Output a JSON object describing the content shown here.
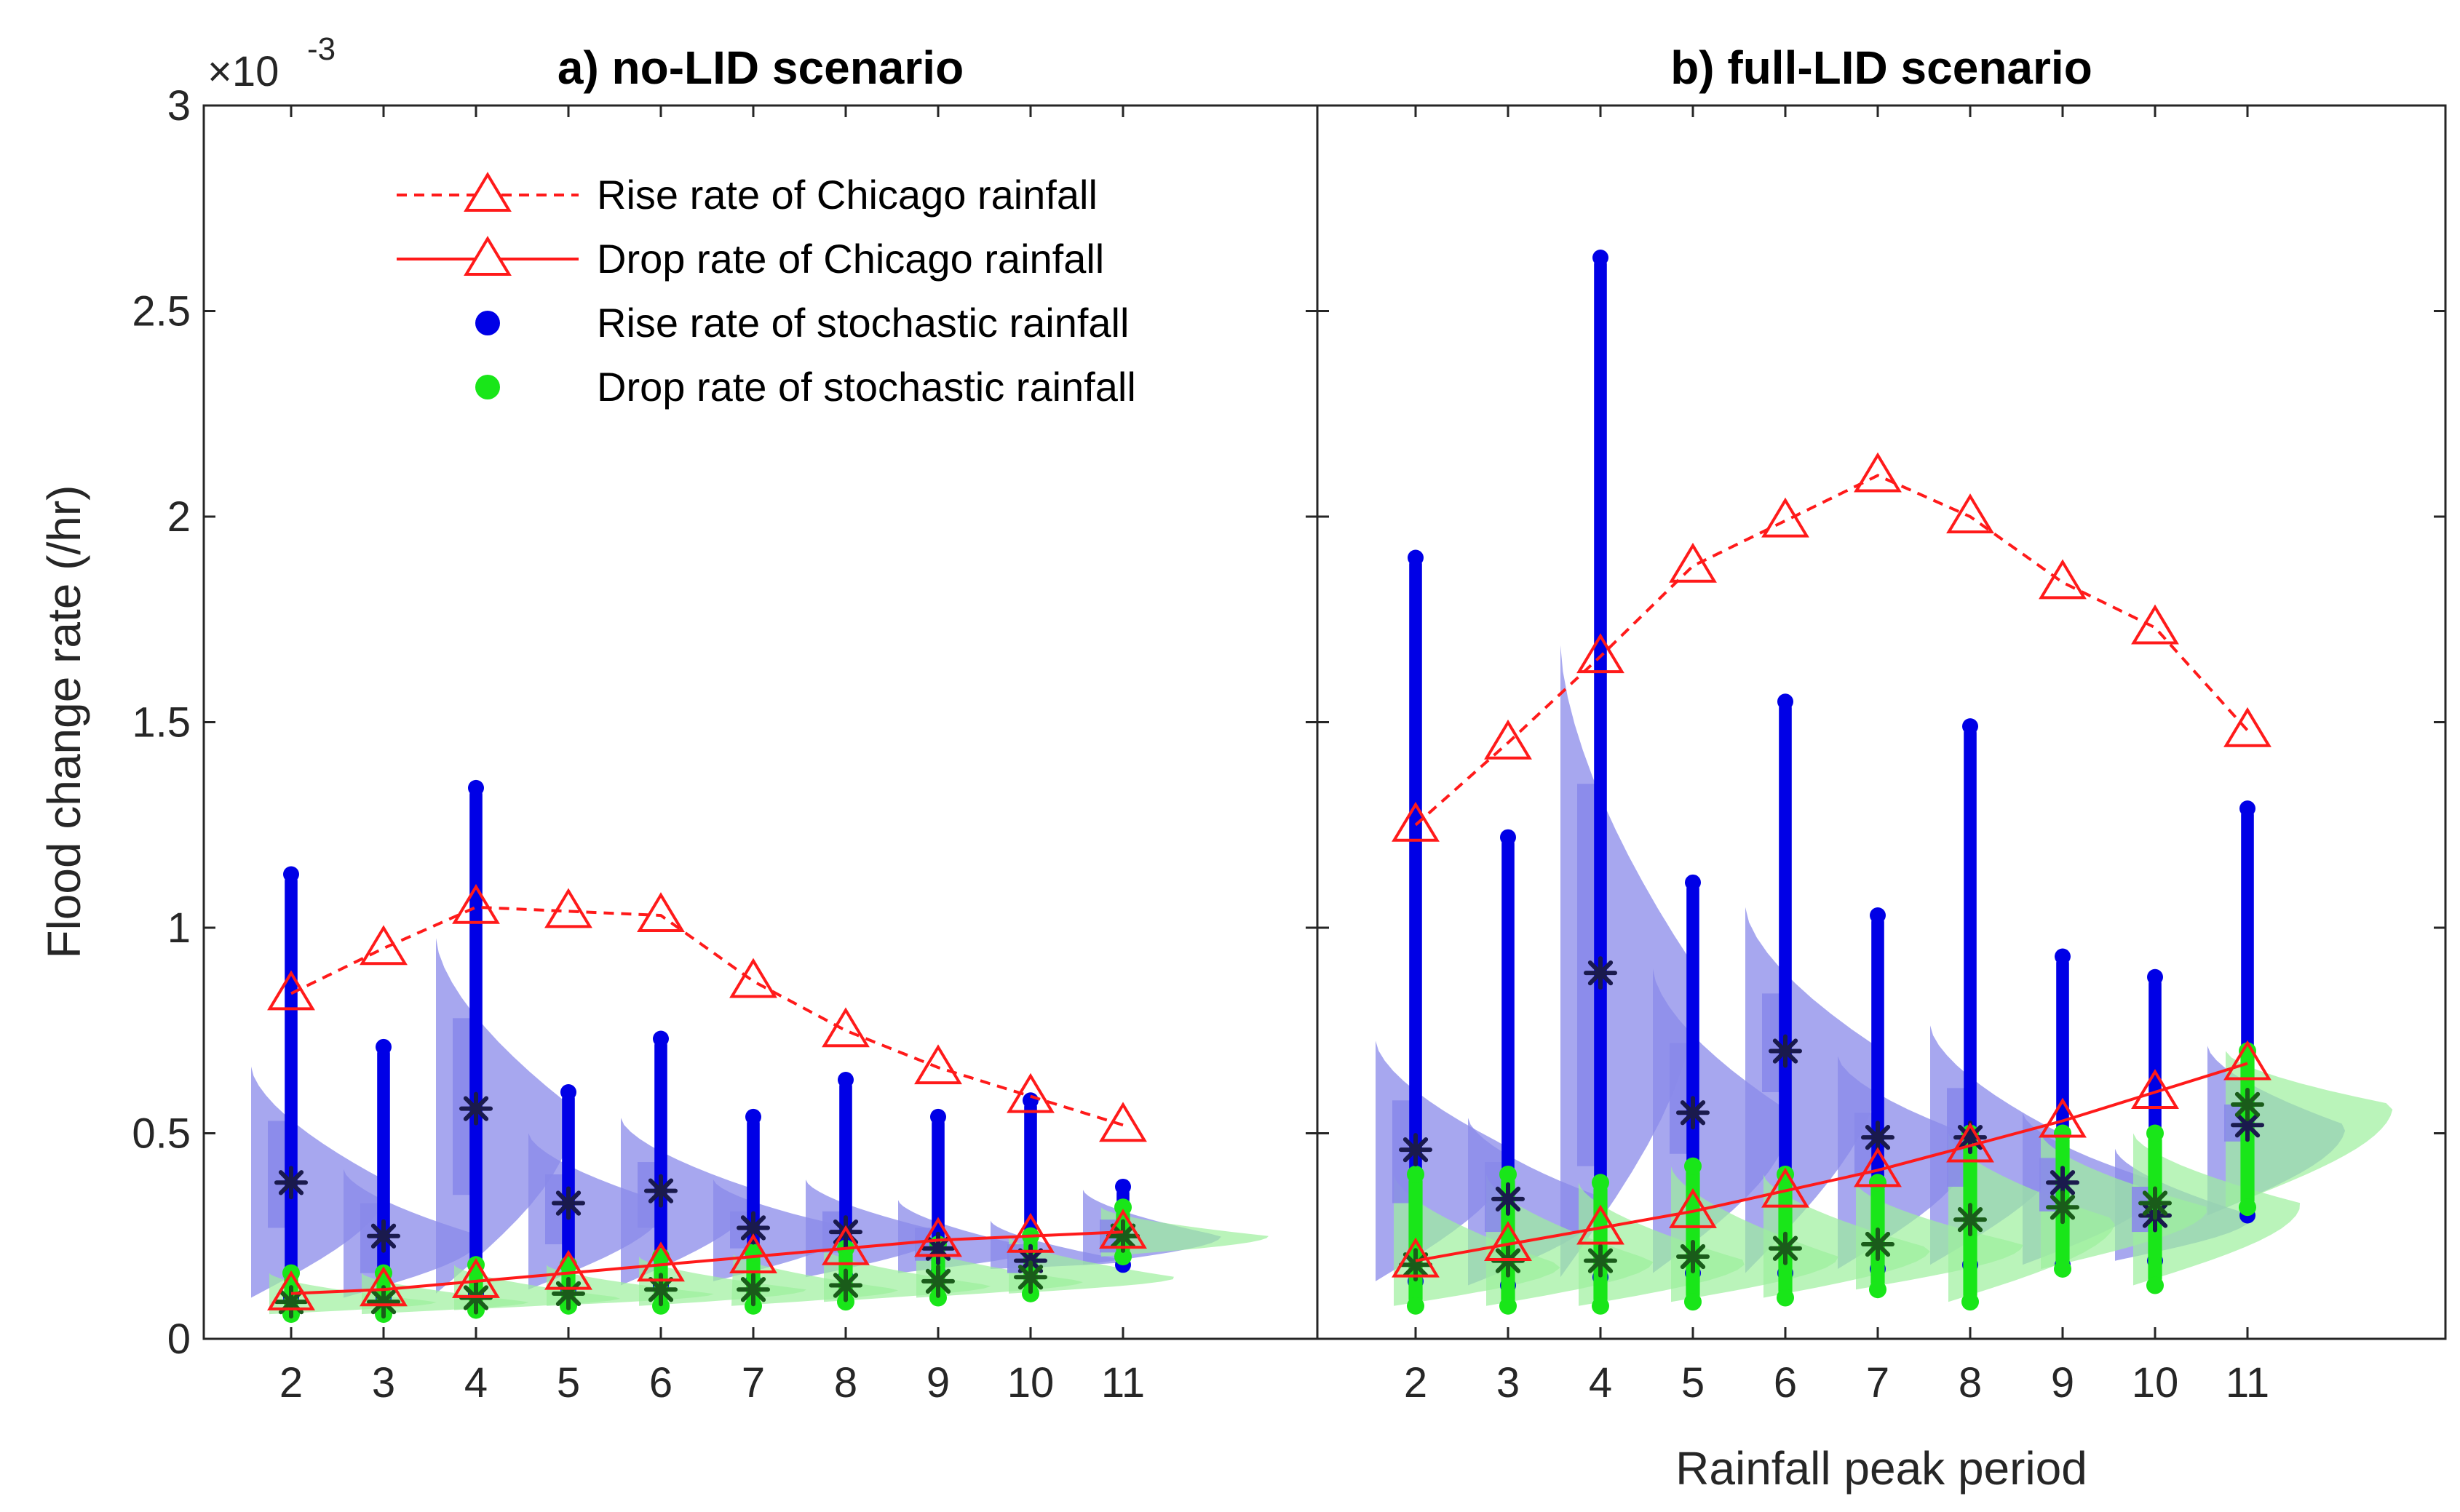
{
  "colors": {
    "chicago": "#ff1a1a",
    "stoch_rise": "#0000e6",
    "stoch_drop": "#19e619",
    "violin_rise": "#8a8aea",
    "violin_drop": "#9cef9c",
    "median_mark": "#1a1a4d",
    "median_mark_drop": "#1a5c1a"
  },
  "y_exponent_label": "×10",
  "y_exponent_power": "-3",
  "chart_data": [
    {
      "type": "scatter",
      "title": "a) no-LID scenario",
      "xlabel": "",
      "ylabel": "Flood change rate (/hr)",
      "ylim": [
        0,
        3
      ],
      "y_scale": "×10^-3",
      "y_ticks": [
        "0",
        "0.5",
        "1",
        "1.5",
        "2",
        "2.5",
        "3"
      ],
      "categories": [
        "2",
        "3",
        "4",
        "5",
        "6",
        "7",
        "8",
        "9",
        "10",
        "11"
      ],
      "legend": [
        "Rise rate of Chicago rainfall",
        "Drop rate of Chicago rainfall",
        "Rise rate of stochastic rainfall",
        "Drop rate of stochastic rainfall"
      ],
      "legend_position": "top",
      "series": [
        {
          "name": "Rise rate of Chicago rainfall",
          "style": "dashed-triangle",
          "values": [
            0.84,
            0.95,
            1.05,
            1.04,
            1.03,
            0.87,
            0.75,
            0.66,
            0.59,
            0.52
          ]
        },
        {
          "name": "Drop rate of Chicago rainfall",
          "style": "solid-triangle",
          "values": [
            0.11,
            0.12,
            0.14,
            0.16,
            0.18,
            0.2,
            0.22,
            0.24,
            0.25,
            0.26
          ]
        }
      ],
      "stochastic_rise": {
        "median": [
          0.38,
          0.25,
          0.56,
          0.33,
          0.36,
          0.27,
          0.26,
          0.22,
          0.19,
          0.25
        ],
        "min": [
          0.1,
          0.1,
          0.11,
          0.12,
          0.13,
          0.14,
          0.15,
          0.16,
          0.17,
          0.18
        ],
        "max": [
          1.13,
          0.71,
          1.34,
          0.6,
          0.73,
          0.54,
          0.63,
          0.54,
          0.58,
          0.37
        ],
        "q1": [
          0.27,
          0.16,
          0.35,
          0.23,
          0.27,
          0.22,
          0.21,
          0.19,
          0.16,
          0.21
        ],
        "q3": [
          0.53,
          0.33,
          0.78,
          0.4,
          0.43,
          0.31,
          0.31,
          0.27,
          0.23,
          0.29
        ]
      },
      "stochastic_drop": {
        "median": [
          0.09,
          0.09,
          0.1,
          0.11,
          0.12,
          0.12,
          0.13,
          0.14,
          0.15,
          0.25
        ],
        "min": [
          0.06,
          0.06,
          0.07,
          0.08,
          0.08,
          0.08,
          0.09,
          0.1,
          0.11,
          0.2
        ],
        "max": [
          0.16,
          0.16,
          0.18,
          0.18,
          0.2,
          0.21,
          0.22,
          0.23,
          0.25,
          0.32
        ]
      }
    },
    {
      "type": "scatter",
      "title": "b) full-LID scenario",
      "xlabel": "Rainfall peak period",
      "ylabel": "",
      "ylim": [
        0,
        3
      ],
      "categories": [
        "2",
        "3",
        "4",
        "5",
        "6",
        "7",
        "8",
        "9",
        "10",
        "11"
      ],
      "series": [
        {
          "name": "Rise rate of Chicago rainfall",
          "style": "dashed-triangle",
          "values": [
            1.25,
            1.45,
            1.66,
            1.88,
            1.99,
            2.1,
            2.0,
            1.84,
            1.73,
            1.48
          ]
        },
        {
          "name": "Drop rate of Chicago rainfall",
          "style": "solid-triangle",
          "values": [
            0.19,
            0.23,
            0.27,
            0.31,
            0.36,
            0.41,
            0.47,
            0.53,
            0.6,
            0.67
          ]
        }
      ],
      "stochastic_rise": {
        "median": [
          0.46,
          0.34,
          0.89,
          0.55,
          0.7,
          0.49,
          0.49,
          0.38,
          0.3,
          0.52
        ],
        "min": [
          0.14,
          0.13,
          0.15,
          0.16,
          0.16,
          0.17,
          0.18,
          0.18,
          0.19,
          0.3
        ],
        "max": [
          1.9,
          1.22,
          2.63,
          1.11,
          1.55,
          1.03,
          1.49,
          0.93,
          0.88,
          1.29
        ],
        "q1": [
          0.33,
          0.26,
          0.42,
          0.45,
          0.6,
          0.4,
          0.37,
          0.31,
          0.26,
          0.48
        ],
        "q3": [
          0.58,
          0.43,
          1.35,
          0.72,
          0.84,
          0.55,
          0.61,
          0.44,
          0.37,
          0.57
        ]
      },
      "stochastic_drop": {
        "median": [
          0.18,
          0.19,
          0.19,
          0.2,
          0.22,
          0.23,
          0.29,
          0.32,
          0.33,
          0.57
        ],
        "min": [
          0.08,
          0.08,
          0.08,
          0.09,
          0.1,
          0.12,
          0.09,
          0.17,
          0.13,
          0.32
        ],
        "max": [
          0.4,
          0.4,
          0.38,
          0.42,
          0.4,
          0.38,
          0.5,
          0.5,
          0.5,
          0.7
        ]
      }
    }
  ]
}
